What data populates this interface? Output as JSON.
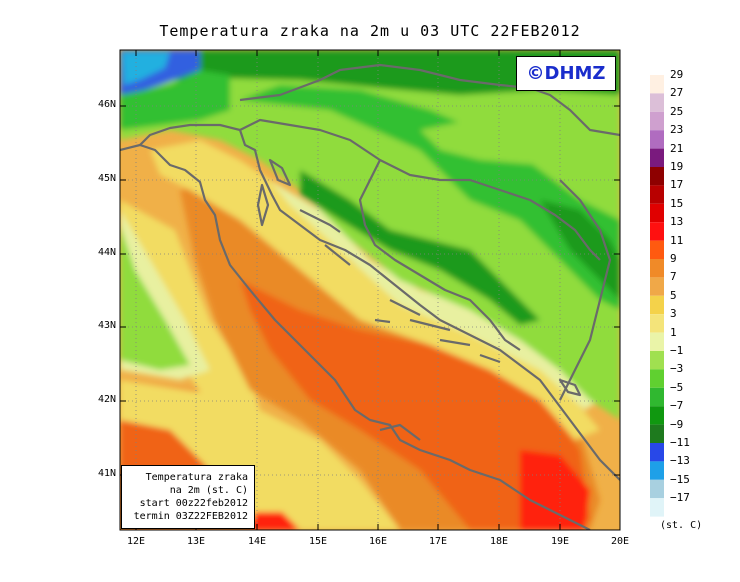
{
  "title": "Temperatura zraka na 2m u 03 UTC 22FEB2012",
  "logo_text": "©DHMZ",
  "info_box": {
    "line1": "Temperatura zraka",
    "line2": "na 2m (st. C)",
    "line3": "start 00z22feb2012",
    "line4": "termin 03Z22FEB2012"
  },
  "lat_labels": [
    "46N",
    "45N",
    "44N",
    "43N",
    "42N",
    "41N"
  ],
  "lon_labels": [
    "12E",
    "13E",
    "14E",
    "15E",
    "16E",
    "17E",
    "18E",
    "19E",
    "20E"
  ],
  "legend": {
    "labels": [
      "29",
      "27",
      "25",
      "23",
      "21",
      "19",
      "17",
      "15",
      "13",
      "11",
      "9",
      "7",
      "5",
      "3",
      "1",
      "−1",
      "−3",
      "−5",
      "−7",
      "−9",
      "−11",
      "−13",
      "−15",
      "−17"
    ],
    "colors": [
      "#fff0e2",
      "#dcbfd8",
      "#cfa0cf",
      "#b06cc0",
      "#7a1a7e",
      "#8e0000",
      "#b80000",
      "#e00000",
      "#ff1010",
      "#ff5a10",
      "#f08a28",
      "#f0a848",
      "#f4d24a",
      "#f4e47a",
      "#eaf4a8",
      "#a0e050",
      "#60d030",
      "#30b830",
      "#109810",
      "#1e7a1e",
      "#2848e8",
      "#1ea0e8",
      "#a8d0e0",
      "#e0f4f8"
    ],
    "unit": "(st. C)"
  },
  "colors": {
    "green_dark": "#1a9a1a",
    "green": "#30c030",
    "green_light": "#90dc3c",
    "yellow_light": "#e8f0a0",
    "yellow": "#f2dc62",
    "orange_light": "#f0b048",
    "orange": "#ea8a28",
    "orange_dark": "#f06414",
    "red": "#ff2010",
    "blue": "#3060e0",
    "cyan": "#20b0e0",
    "coast": "#6a6a6a",
    "grid": "#808080"
  }
}
